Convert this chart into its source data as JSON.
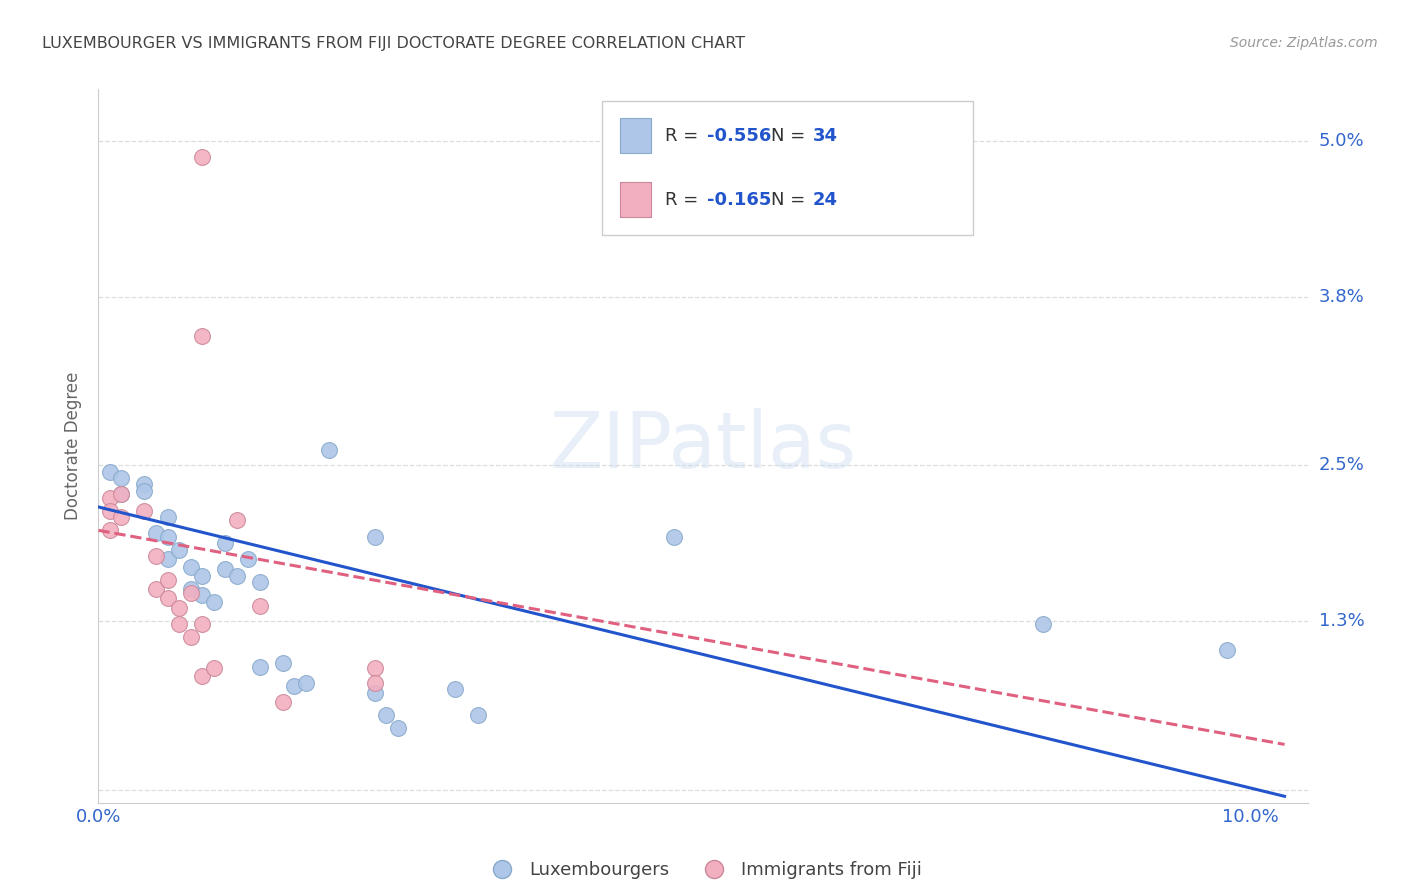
{
  "title": "LUXEMBOURGER VS IMMIGRANTS FROM FIJI DOCTORATE DEGREE CORRELATION CHART",
  "source": "Source: ZipAtlas.com",
  "ylabel": "Doctorate Degree",
  "watermark": "ZIPatlas",
  "xlim": [
    0.0,
    0.105
  ],
  "ylim": [
    -0.001,
    0.054
  ],
  "ytick_positions": [
    0.0,
    0.013,
    0.025,
    0.038,
    0.05
  ],
  "ytick_labels": [
    "",
    "1.3%",
    "2.5%",
    "3.8%",
    "5.0%"
  ],
  "xtick_positions": [
    0.0,
    0.1
  ],
  "xtick_labels": [
    "0.0%",
    "10.0%"
  ],
  "blue_color": "#aec6e8",
  "pink_color": "#f2afc0",
  "line_blue_color": "#2255cc",
  "line_pink_color": "#e06080",
  "blue_scatter": [
    [
      0.001,
      0.0245
    ],
    [
      0.002,
      0.024
    ],
    [
      0.002,
      0.0228
    ],
    [
      0.004,
      0.0236
    ],
    [
      0.004,
      0.023
    ],
    [
      0.005,
      0.0198
    ],
    [
      0.006,
      0.021
    ],
    [
      0.006,
      0.0195
    ],
    [
      0.006,
      0.0178
    ],
    [
      0.007,
      0.0185
    ],
    [
      0.008,
      0.0172
    ],
    [
      0.008,
      0.0155
    ],
    [
      0.009,
      0.0165
    ],
    [
      0.009,
      0.015
    ],
    [
      0.01,
      0.0145
    ],
    [
      0.011,
      0.019
    ],
    [
      0.011,
      0.017
    ],
    [
      0.012,
      0.0165
    ],
    [
      0.013,
      0.0178
    ],
    [
      0.014,
      0.016
    ],
    [
      0.014,
      0.0095
    ],
    [
      0.016,
      0.0098
    ],
    [
      0.017,
      0.008
    ],
    [
      0.018,
      0.0082
    ],
    [
      0.02,
      0.0262
    ],
    [
      0.024,
      0.0195
    ],
    [
      0.024,
      0.0075
    ],
    [
      0.025,
      0.0058
    ],
    [
      0.026,
      0.0048
    ],
    [
      0.031,
      0.0078
    ],
    [
      0.033,
      0.0058
    ],
    [
      0.05,
      0.0195
    ],
    [
      0.082,
      0.0128
    ],
    [
      0.098,
      0.0108
    ]
  ],
  "pink_scatter": [
    [
      0.001,
      0.0225
    ],
    [
      0.001,
      0.0215
    ],
    [
      0.001,
      0.02
    ],
    [
      0.002,
      0.0228
    ],
    [
      0.002,
      0.021
    ],
    [
      0.004,
      0.0215
    ],
    [
      0.005,
      0.018
    ],
    [
      0.005,
      0.0155
    ],
    [
      0.006,
      0.0162
    ],
    [
      0.006,
      0.0148
    ],
    [
      0.007,
      0.014
    ],
    [
      0.007,
      0.0128
    ],
    [
      0.008,
      0.0152
    ],
    [
      0.008,
      0.0118
    ],
    [
      0.009,
      0.0128
    ],
    [
      0.009,
      0.0488
    ],
    [
      0.009,
      0.0088
    ],
    [
      0.01,
      0.0094
    ],
    [
      0.012,
      0.0208
    ],
    [
      0.014,
      0.0142
    ],
    [
      0.016,
      0.0068
    ],
    [
      0.009,
      0.035
    ],
    [
      0.024,
      0.0094
    ],
    [
      0.024,
      0.0082
    ]
  ],
  "blue_line_x": [
    0.0,
    0.103
  ],
  "blue_line_y": [
    0.0218,
    -0.0005
  ],
  "pink_line_x": [
    0.0,
    0.103
  ],
  "pink_line_y": [
    0.02,
    0.0035
  ],
  "grid_color": "#dddddd",
  "bg_color": "#ffffff",
  "title_color": "#444444",
  "tick_color": "#3366cc",
  "label_color": "#666666"
}
